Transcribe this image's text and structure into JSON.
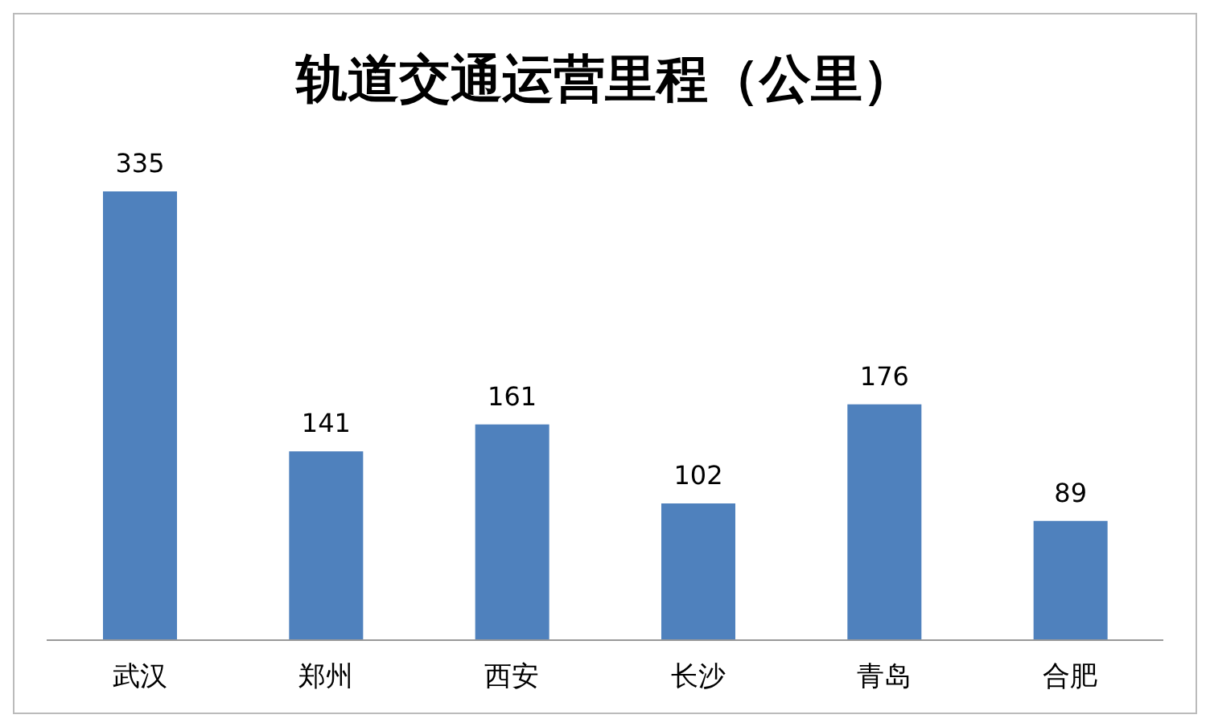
{
  "chart_data": {
    "type": "bar",
    "title": "轨道交通运营里程（公里）",
    "categories": [
      "武汉",
      "郑州",
      "西安",
      "长沙",
      "青岛",
      "合肥"
    ],
    "values": [
      335,
      141,
      161,
      102,
      176,
      89
    ],
    "color": "#4f81bd",
    "data_labels": true
  }
}
